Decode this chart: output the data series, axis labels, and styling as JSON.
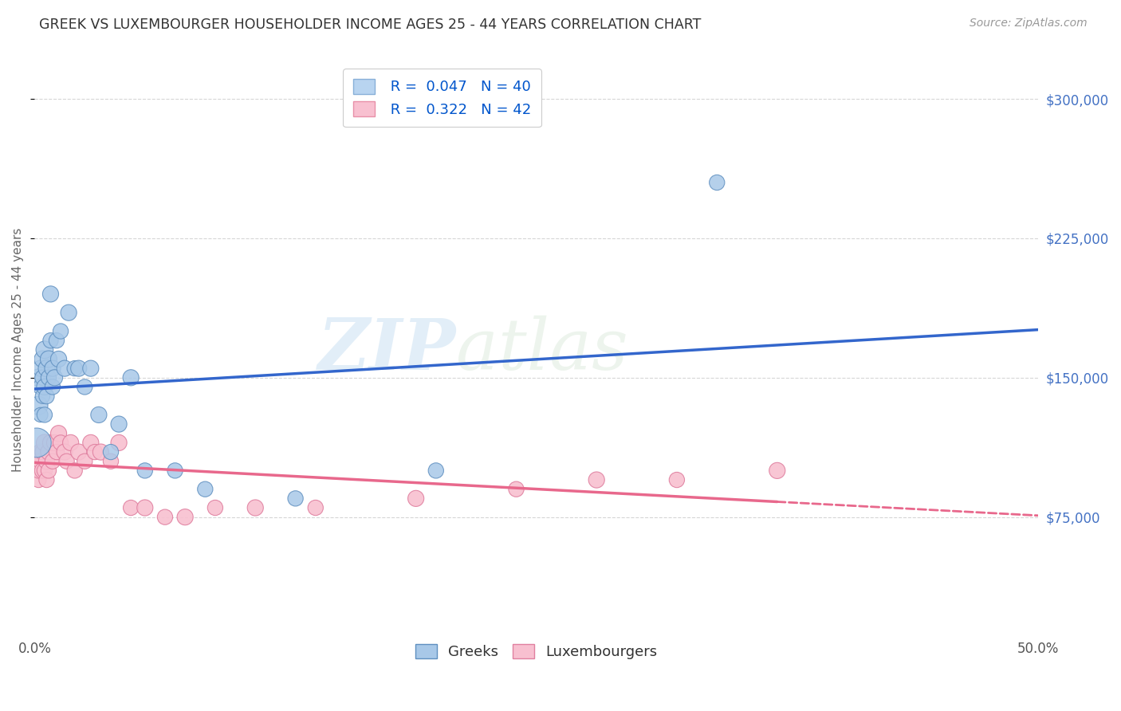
{
  "title": "GREEK VS LUXEMBOURGER HOUSEHOLDER INCOME AGES 25 - 44 YEARS CORRELATION CHART",
  "source": "Source: ZipAtlas.com",
  "ylabel": "Householder Income Ages 25 - 44 years",
  "ytick_labels": [
    "$75,000",
    "$150,000",
    "$225,000",
    "$300,000"
  ],
  "ytick_values": [
    75000,
    150000,
    225000,
    300000
  ],
  "xmin": 0.0,
  "xmax": 0.5,
  "ymin": 10000,
  "ymax": 320000,
  "legend_color1": "#b8d4f0",
  "legend_color2": "#f8c0d0",
  "legend_edge1": "#88b0d8",
  "legend_edge2": "#e890a8",
  "watermark_zip": "ZIP",
  "watermark_atlas": "atlas",
  "greeks_color": "#a8c8e8",
  "greeks_edgecolor": "#6090c0",
  "luxembourgers_color": "#f8c0d0",
  "luxembourgers_edgecolor": "#e080a0",
  "trendline_greek_color": "#3366cc",
  "trendline_lux_color": "#e8688c",
  "greeks_x": [
    0.001,
    0.002,
    0.002,
    0.003,
    0.003,
    0.003,
    0.004,
    0.004,
    0.004,
    0.005,
    0.005,
    0.005,
    0.006,
    0.006,
    0.007,
    0.007,
    0.008,
    0.008,
    0.009,
    0.009,
    0.01,
    0.011,
    0.012,
    0.013,
    0.015,
    0.017,
    0.02,
    0.022,
    0.025,
    0.028,
    0.032,
    0.038,
    0.042,
    0.048,
    0.055,
    0.07,
    0.085,
    0.13,
    0.2,
    0.34
  ],
  "greeks_y": [
    115000,
    135000,
    150000,
    155000,
    145000,
    130000,
    160000,
    150000,
    140000,
    165000,
    145000,
    130000,
    155000,
    140000,
    160000,
    150000,
    195000,
    170000,
    155000,
    145000,
    150000,
    170000,
    160000,
    175000,
    155000,
    185000,
    155000,
    155000,
    145000,
    155000,
    130000,
    110000,
    125000,
    150000,
    100000,
    100000,
    90000,
    85000,
    100000,
    255000
  ],
  "greeks_size": [
    200,
    80,
    70,
    60,
    55,
    50,
    65,
    55,
    50,
    70,
    60,
    55,
    65,
    55,
    65,
    55,
    60,
    55,
    60,
    55,
    60,
    55,
    60,
    55,
    60,
    60,
    55,
    60,
    55,
    60,
    60,
    55,
    60,
    60,
    55,
    55,
    55,
    55,
    55,
    55
  ],
  "luxembourgers_x": [
    0.001,
    0.002,
    0.002,
    0.003,
    0.003,
    0.004,
    0.004,
    0.005,
    0.005,
    0.006,
    0.006,
    0.007,
    0.007,
    0.008,
    0.009,
    0.01,
    0.011,
    0.012,
    0.013,
    0.015,
    0.016,
    0.018,
    0.02,
    0.022,
    0.025,
    0.028,
    0.03,
    0.033,
    0.038,
    0.042,
    0.048,
    0.055,
    0.065,
    0.075,
    0.09,
    0.11,
    0.14,
    0.19,
    0.24,
    0.28,
    0.32,
    0.37
  ],
  "luxembourgers_y": [
    105000,
    95000,
    100000,
    110000,
    105000,
    100000,
    110000,
    115000,
    100000,
    105000,
    95000,
    110000,
    100000,
    115000,
    105000,
    115000,
    110000,
    120000,
    115000,
    110000,
    105000,
    115000,
    100000,
    110000,
    105000,
    115000,
    110000,
    110000,
    105000,
    115000,
    80000,
    80000,
    75000,
    75000,
    80000,
    80000,
    80000,
    85000,
    90000,
    95000,
    95000,
    100000
  ],
  "luxembourgers_size": [
    55,
    55,
    55,
    60,
    55,
    60,
    55,
    65,
    55,
    60,
    55,
    60,
    55,
    60,
    55,
    60,
    55,
    60,
    55,
    60,
    55,
    60,
    55,
    60,
    55,
    60,
    55,
    60,
    55,
    60,
    55,
    60,
    55,
    60,
    55,
    60,
    55,
    60,
    55,
    60,
    55,
    60
  ]
}
